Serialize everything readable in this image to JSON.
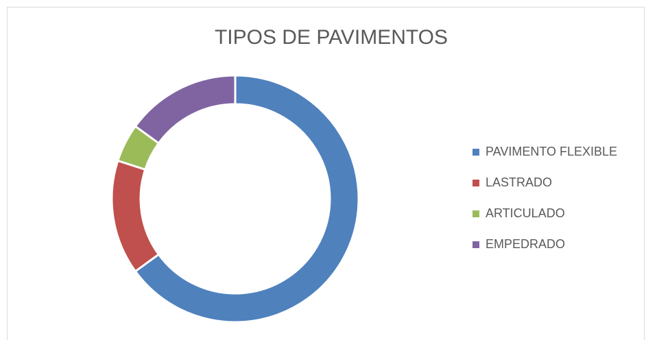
{
  "chart_data": {
    "type": "donut",
    "title": "TIPOS DE PAVIMENTOS",
    "categories": [
      "PAVIMENTO FLEXIBLE",
      "LASTRADO",
      "ARTICULADO",
      "EMPEDRADO"
    ],
    "values": [
      65,
      15,
      5,
      15
    ],
    "colors": [
      "#4f81bd",
      "#c0504d",
      "#9bbb59",
      "#8064a2"
    ],
    "legend": "right"
  }
}
